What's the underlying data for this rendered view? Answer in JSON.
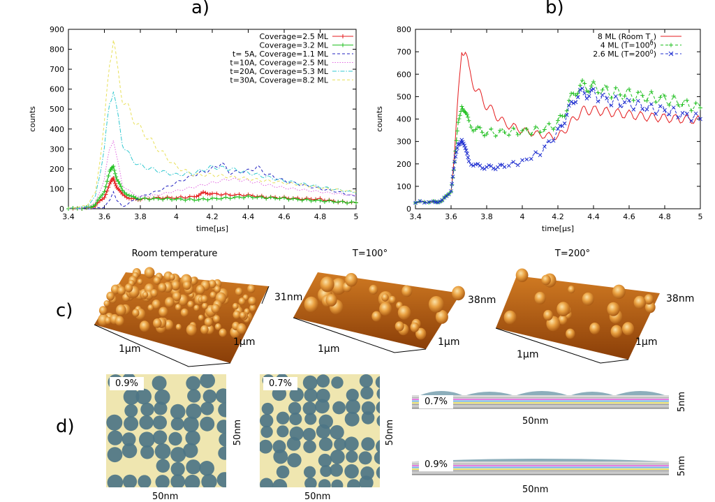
{
  "panels": {
    "a": "a)",
    "b": "b)",
    "c": "c)",
    "d": "d)"
  },
  "chart_data": [
    {
      "type": "line",
      "title": "a)",
      "xlabel": "time[µs]",
      "ylabel": "counts",
      "xlim": [
        3.4,
        5
      ],
      "ylim": [
        0,
        900
      ],
      "xticks": [
        "3.4",
        "3.6",
        "3.8",
        "4",
        "4.2",
        "4.4",
        "4.6",
        "4.8",
        "5"
      ],
      "yticks": [
        "0",
        "100",
        "200",
        "300",
        "400",
        "500",
        "600",
        "700",
        "800",
        "900"
      ],
      "legend_position": "top-right",
      "series": [
        {
          "name": "Coverage=2.5 ML",
          "color": "#e41a1c",
          "style": "solid-marker",
          "x": [
            3.4,
            3.5,
            3.55,
            3.6,
            3.63,
            3.65,
            3.67,
            3.7,
            3.75,
            3.8,
            3.9,
            4.0,
            4.1,
            4.15,
            4.2,
            4.3,
            4.4,
            4.5,
            4.6,
            4.7,
            4.8,
            4.9,
            5.0
          ],
          "y": [
            0,
            2,
            15,
            60,
            120,
            155,
            110,
            70,
            50,
            48,
            55,
            55,
            60,
            80,
            75,
            70,
            68,
            58,
            55,
            50,
            48,
            35,
            30
          ]
        },
        {
          "name": "Coverage=3.2 ML",
          "color": "#22c022",
          "style": "solid-marker",
          "x": [
            3.4,
            3.5,
            3.55,
            3.6,
            3.63,
            3.65,
            3.67,
            3.7,
            3.75,
            3.8,
            3.9,
            4.0,
            4.1,
            4.2,
            4.3,
            4.4,
            4.5,
            4.6,
            4.7,
            4.8,
            4.9,
            5.0
          ],
          "y": [
            0,
            3,
            20,
            90,
            180,
            220,
            150,
            90,
            60,
            50,
            50,
            48,
            45,
            50,
            55,
            60,
            55,
            52,
            45,
            40,
            35,
            30
          ]
        },
        {
          "name": "t= 5A, Coverage=1.1 ML",
          "color": "#2020c0",
          "style": "dashed",
          "x": [
            3.4,
            3.55,
            3.6,
            3.63,
            3.65,
            3.67,
            3.7,
            3.8,
            3.9,
            4.0,
            4.1,
            4.2,
            4.25,
            4.3,
            4.4,
            4.45,
            4.5,
            4.6,
            4.7,
            4.8,
            4.9,
            5.0
          ],
          "y": [
            0,
            0,
            10,
            40,
            90,
            40,
            10,
            60,
            90,
            130,
            170,
            200,
            230,
            180,
            190,
            210,
            175,
            140,
            120,
            100,
            85,
            60
          ]
        },
        {
          "name": "t=10A, Coverage=2.5 ML",
          "color": "#e066e0",
          "style": "dotted",
          "x": [
            3.4,
            3.5,
            3.55,
            3.6,
            3.63,
            3.65,
            3.67,
            3.7,
            3.75,
            3.8,
            3.9,
            4.0,
            4.1,
            4.2,
            4.3,
            4.4,
            4.5,
            4.6,
            4.7,
            4.8,
            4.9,
            5.0
          ],
          "y": [
            0,
            5,
            30,
            150,
            300,
            360,
            250,
            120,
            80,
            60,
            70,
            90,
            110,
            130,
            150,
            140,
            120,
            105,
            95,
            85,
            75,
            65
          ]
        },
        {
          "name": "t=20A, Coverage=5.3 ML",
          "color": "#30c8d0",
          "style": "dash-dot",
          "x": [
            3.4,
            3.5,
            3.55,
            3.6,
            3.63,
            3.65,
            3.67,
            3.7,
            3.75,
            3.8,
            3.9,
            4.0,
            4.1,
            4.2,
            4.3,
            4.4,
            4.5,
            4.6,
            4.7,
            4.8,
            4.9,
            5.0
          ],
          "y": [
            0,
            10,
            60,
            300,
            540,
            610,
            480,
            330,
            250,
            215,
            190,
            170,
            180,
            210,
            200,
            180,
            160,
            140,
            125,
            110,
            95,
            80
          ]
        },
        {
          "name": "t=30A, Coverage=8.2 ML",
          "color": "#e8e05a",
          "style": "dashed",
          "x": [
            3.4,
            3.5,
            3.55,
            3.6,
            3.63,
            3.65,
            3.67,
            3.7,
            3.75,
            3.8,
            3.9,
            4.0,
            4.1,
            4.2,
            4.3,
            4.4,
            4.5,
            4.6,
            4.7,
            4.8,
            4.9,
            5.0
          ],
          "y": [
            0,
            15,
            80,
            420,
            760,
            860,
            700,
            560,
            470,
            400,
            300,
            210,
            170,
            170,
            160,
            150,
            140,
            130,
            120,
            105,
            95,
            85
          ]
        }
      ]
    },
    {
      "type": "line",
      "title": "b)",
      "xlabel": "time[µs]",
      "ylabel": "counts",
      "xlim": [
        3.4,
        5
      ],
      "ylim": [
        0,
        800
      ],
      "xticks": [
        "3.4",
        "3.6",
        "3.8",
        "4",
        "4.2",
        "4.4",
        "4.6",
        "4.8",
        "5"
      ],
      "yticks": [
        "0",
        "100",
        "200",
        "300",
        "400",
        "500",
        "600",
        "700",
        "800"
      ],
      "legend_position": "top-right",
      "series": [
        {
          "name": "8  ML (Room T)",
          "color": "#e41a1c",
          "style": "solid",
          "x": [
            3.4,
            3.5,
            3.55,
            3.6,
            3.62,
            3.64,
            3.66,
            3.68,
            3.7,
            3.75,
            3.8,
            3.85,
            3.9,
            4.0,
            4.1,
            4.2,
            4.25,
            4.3,
            4.35,
            4.4,
            4.5,
            4.6,
            4.7,
            4.8,
            4.9,
            5.0
          ],
          "y": [
            30,
            30,
            35,
            80,
            250,
            500,
            730,
            700,
            610,
            520,
            460,
            420,
            380,
            350,
            330,
            320,
            360,
            410,
            440,
            440,
            430,
            420,
            410,
            405,
            400,
            395
          ]
        },
        {
          "name": "4  ML (T=100)",
          "color": "#22c022",
          "style": "dashed-plus",
          "x": [
            3.4,
            3.5,
            3.55,
            3.6,
            3.62,
            3.64,
            3.66,
            3.68,
            3.7,
            3.75,
            3.8,
            3.9,
            4.0,
            4.1,
            4.2,
            4.25,
            4.3,
            4.35,
            4.4,
            4.5,
            4.6,
            4.7,
            4.8,
            4.9,
            5.0
          ],
          "y": [
            30,
            30,
            35,
            80,
            200,
            380,
            480,
            420,
            380,
            350,
            340,
            340,
            345,
            350,
            380,
            450,
            530,
            550,
            540,
            520,
            510,
            500,
            490,
            470,
            450
          ]
        },
        {
          "name": "2.6 ML (T=200)",
          "color": "#1f2fd0",
          "style": "dashed-x",
          "x": [
            3.4,
            3.5,
            3.55,
            3.6,
            3.62,
            3.64,
            3.66,
            3.68,
            3.7,
            3.75,
            3.8,
            3.85,
            3.9,
            4.0,
            4.1,
            4.2,
            4.25,
            4.3,
            4.35,
            4.4,
            4.5,
            4.6,
            4.7,
            4.8,
            4.9,
            5.0
          ],
          "y": [
            30,
            30,
            35,
            80,
            200,
            290,
            320,
            260,
            210,
            190,
            185,
            185,
            190,
            210,
            250,
            340,
            420,
            500,
            520,
            510,
            480,
            470,
            450,
            440,
            420,
            400
          ]
        }
      ]
    }
  ],
  "legend_b_sub": [
    "c",
    "0",
    "0"
  ],
  "afm": {
    "titles": [
      "Room temperature",
      "T=100°",
      "T=200°"
    ],
    "heights": [
      "31nm",
      "38nm",
      "38nm"
    ],
    "size_label": "1μm"
  },
  "sim": {
    "top_left": {
      "tag": "0.9%",
      "bottom": "50nm",
      "side": "50nm"
    },
    "top_mid": {
      "tag": "0.7%",
      "bottom": "50nm",
      "side": "50nm"
    },
    "cross1": {
      "tag": "0.7%",
      "bottom": "50nm",
      "side": "5nm"
    },
    "cross2": {
      "tag": "0.9%",
      "bottom": "50nm",
      "side": "5nm"
    }
  },
  "colors": {
    "afm_base": "#b85a10",
    "afm_peak": "#f6c06a",
    "sim_bg": "#efe6b0",
    "sim_blob": "#4d7585"
  }
}
